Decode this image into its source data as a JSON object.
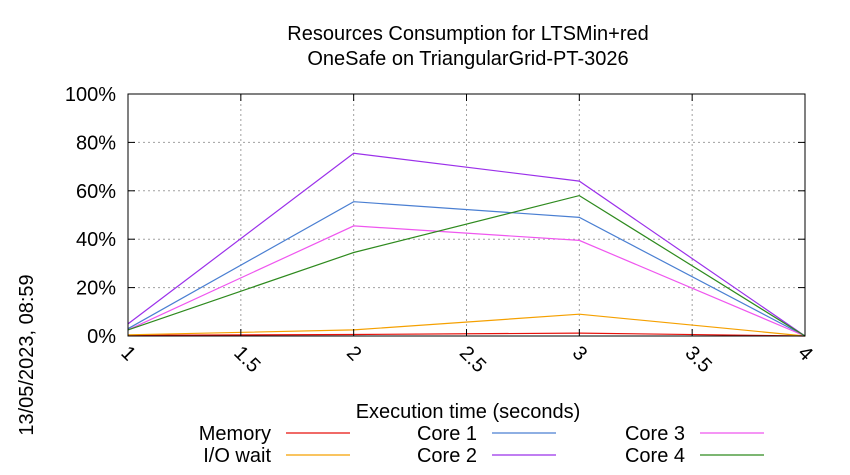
{
  "timestamp": "13/05/2023, 08:59",
  "chart_data": {
    "type": "line",
    "title_lines": [
      "Resources Consumption for LTSMin+red",
      "OneSafe on TriangularGrid-PT-3026"
    ],
    "xlabel": "Execution time (seconds)",
    "ylabel": "",
    "xlim": [
      1,
      4
    ],
    "ylim": [
      0,
      100
    ],
    "x_ticks": [
      "1",
      "1.5",
      "2",
      "2.5",
      "3",
      "3.5",
      "4"
    ],
    "x_tick_values": [
      1,
      1.5,
      2,
      2.5,
      3,
      3.5,
      4
    ],
    "y_ticks": [
      "0%",
      "20%",
      "40%",
      "60%",
      "80%",
      "100%"
    ],
    "y_tick_values": [
      0,
      20,
      40,
      60,
      80,
      100
    ],
    "grid": true,
    "legend_position": "bottom",
    "x": [
      1,
      2,
      3,
      4
    ],
    "series": [
      {
        "name": "Memory",
        "color": "#e8120c",
        "values": [
          0.3,
          0.6,
          1.2,
          0
        ]
      },
      {
        "name": "I/O wait",
        "color": "#f5a000",
        "values": [
          0.5,
          2.5,
          9,
          0
        ]
      },
      {
        "name": "Core 1",
        "color": "#4a7fd2",
        "values": [
          3,
          55.5,
          49,
          0
        ]
      },
      {
        "name": "Core 2",
        "color": "#9b30ea",
        "values": [
          5,
          75.5,
          64,
          0
        ]
      },
      {
        "name": "Core 3",
        "color": "#ef56ef",
        "values": [
          2.5,
          45.5,
          39.5,
          0
        ]
      },
      {
        "name": "Core 4",
        "color": "#2e8a1e",
        "values": [
          2.5,
          34.5,
          58,
          0
        ]
      }
    ]
  }
}
